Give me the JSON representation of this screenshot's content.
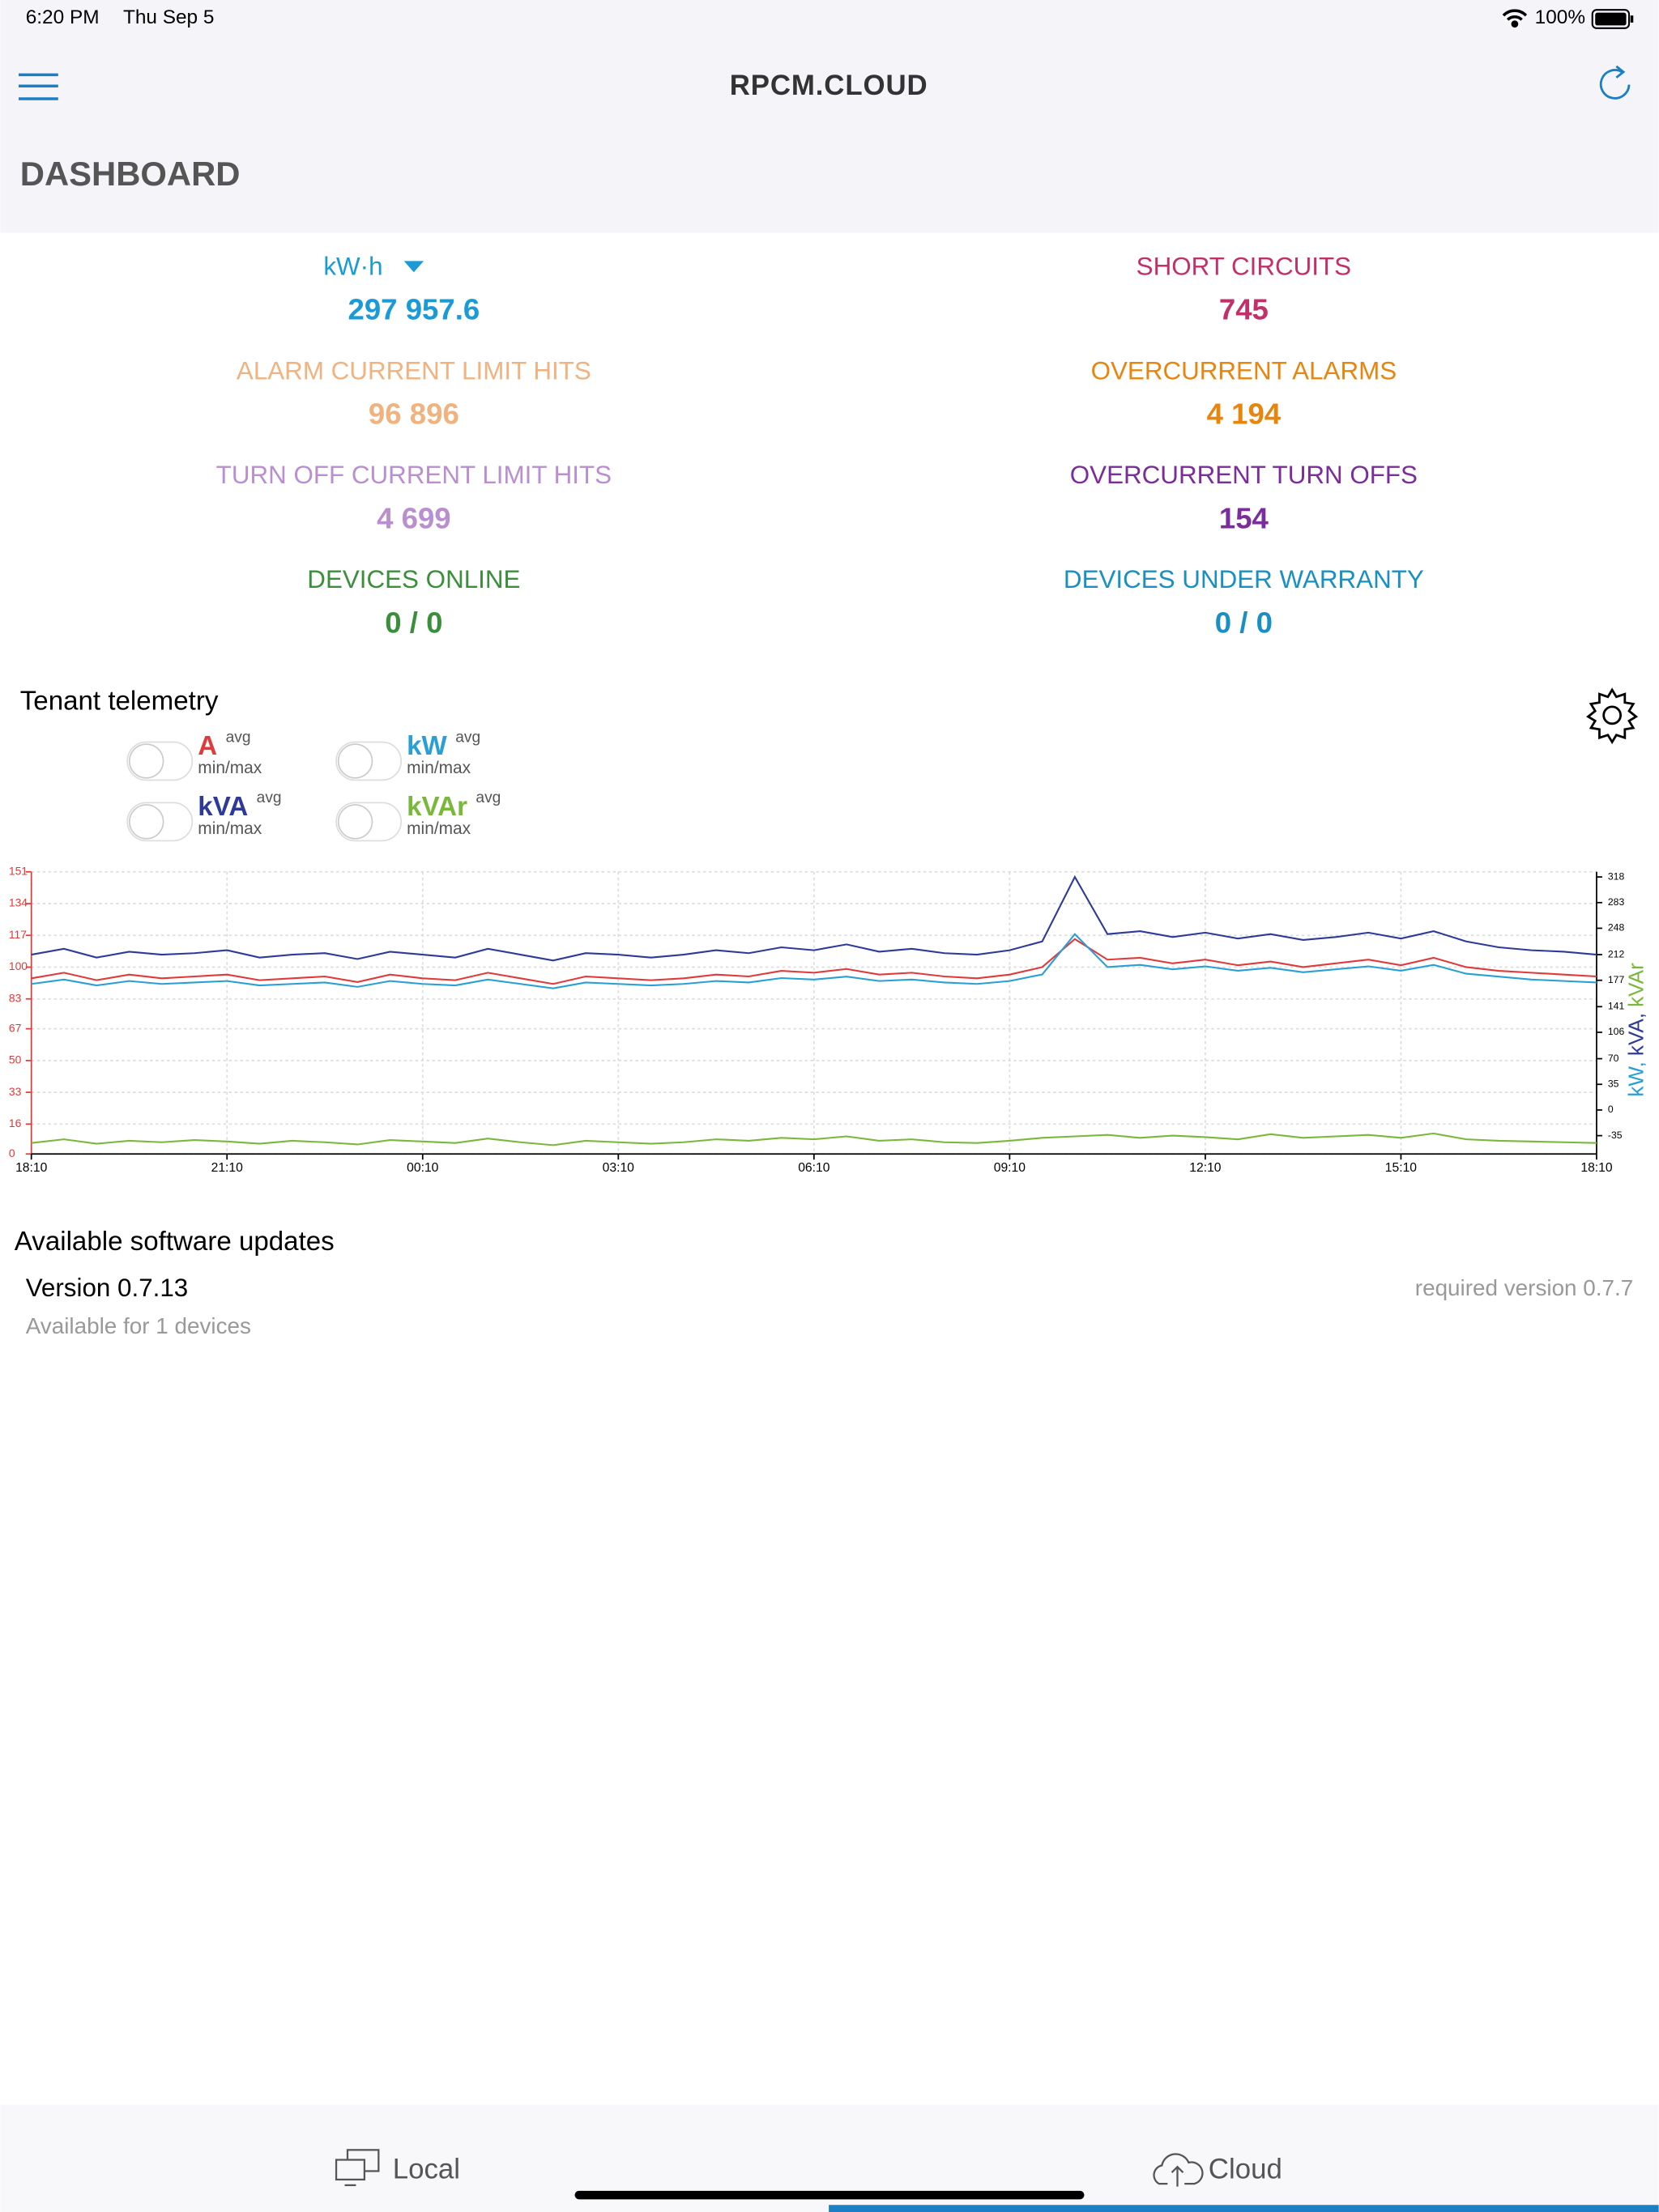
{
  "status_bar": {
    "time": "6:20 PM",
    "date": "Thu Sep 5",
    "battery": "100%"
  },
  "header": {
    "title": "RPCM.CLOUD",
    "page_title": "DASHBOARD"
  },
  "stats": [
    {
      "label": "kW·h",
      "value": "297 957.6",
      "color": "#1a9ad6"
    },
    {
      "label": "SHORT CIRCUITS",
      "value": "745",
      "color": "#c2306a"
    },
    {
      "label": "ALARM CURRENT LIMIT HITS",
      "value": "96 896",
      "color": "#f0b27e"
    },
    {
      "label": "OVERCURRENT ALARMS",
      "value": "4 194",
      "color": "#e8850f"
    },
    {
      "label": "TURN OFF CURRENT LIMIT HITS",
      "value": "4 699",
      "color": "#b98fcf"
    },
    {
      "label": "OVERCURRENT TURN OFFS",
      "value": "154",
      "color": "#7b2d9a"
    },
    {
      "label": "DEVICES ONLINE",
      "value": "0 / 0",
      "color": "#3a8f3a"
    },
    {
      "label": "DEVICES UNDER WARRANTY",
      "value": "0 / 0",
      "color": "#1a8fc4"
    }
  ],
  "telemetry": {
    "title": "Tenant telemetry",
    "avg": "avg",
    "minmax": "min/max"
  },
  "chart_data": {
    "type": "line",
    "x": [
      0,
      0.5,
      1,
      1.5,
      2,
      2.5,
      3,
      3.5,
      4,
      4.5,
      5,
      5.5,
      6,
      6.5,
      7,
      7.5,
      8,
      8.5,
      9,
      9.5,
      10,
      10.5,
      11,
      11.5,
      12,
      12.5,
      13,
      13.5,
      14,
      14.5,
      15,
      15.5,
      16,
      16.5,
      17,
      17.5,
      18,
      18.5,
      19,
      19.5,
      20,
      20.5,
      21,
      21.5,
      22,
      22.5,
      23,
      23.5,
      24
    ],
    "xlim": [
      0,
      24
    ],
    "xticks": [
      {
        "value": 0,
        "label": "18:10"
      },
      {
        "value": 3,
        "label": "21:10"
      },
      {
        "value": 6,
        "label": "00:10"
      },
      {
        "value": 9,
        "label": "03:10"
      },
      {
        "value": 12,
        "label": "06:10"
      },
      {
        "value": 15,
        "label": "09:10"
      },
      {
        "value": 18,
        "label": "12:10"
      },
      {
        "value": 21,
        "label": "15:10"
      },
      {
        "value": 24,
        "label": "18:10"
      }
    ],
    "ylim": [
      0,
      151
    ],
    "yticks": [
      0,
      16,
      33,
      50,
      67,
      83,
      100,
      117,
      134,
      151
    ],
    "y2lim": [
      -60,
      325
    ],
    "y2ticks": [
      -35,
      0,
      35,
      70,
      106,
      141,
      177,
      212,
      248,
      283,
      318
    ],
    "y2label": [
      "kW,",
      "kVA,",
      "kVAr"
    ],
    "grid": true,
    "series": [
      {
        "name": "A",
        "color": "#e03a3a",
        "axis": "y",
        "values": [
          94,
          97,
          93,
          96,
          94,
          95,
          96,
          93,
          94,
          95,
          92,
          96,
          94,
          93,
          97,
          94,
          91,
          95,
          94,
          93,
          94,
          96,
          95,
          98,
          97,
          99,
          96,
          97,
          95,
          94,
          96,
          100,
          115,
          104,
          105,
          102,
          104,
          101,
          103,
          100,
          102,
          104,
          101,
          105,
          100,
          98,
          97,
          96,
          95
        ]
      },
      {
        "name": "kW",
        "color": "#2a9fd6",
        "axis": "y2",
        "values": [
          172,
          178,
          170,
          176,
          172,
          174,
          176,
          170,
          172,
          174,
          168,
          176,
          172,
          170,
          178,
          172,
          166,
          174,
          172,
          170,
          172,
          176,
          174,
          180,
          178,
          182,
          176,
          178,
          174,
          172,
          176,
          185,
          240,
          195,
          198,
          192,
          196,
          190,
          194,
          188,
          192,
          196,
          190,
          198,
          186,
          182,
          178,
          176,
          174
        ]
      },
      {
        "name": "kVA",
        "color": "#2e3a9a",
        "axis": "y2",
        "values": [
          212,
          220,
          208,
          216,
          212,
          214,
          218,
          208,
          212,
          214,
          206,
          216,
          212,
          208,
          220,
          212,
          204,
          214,
          212,
          208,
          212,
          218,
          214,
          222,
          218,
          226,
          216,
          220,
          214,
          212,
          218,
          230,
          318,
          240,
          244,
          236,
          242,
          234,
          240,
          232,
          236,
          242,
          234,
          244,
          230,
          222,
          218,
          216,
          212
        ]
      },
      {
        "name": "kVAr",
        "color": "#7ab83c",
        "axis": "y2",
        "values": [
          -45,
          -40,
          -46,
          -42,
          -44,
          -41,
          -43,
          -46,
          -42,
          -44,
          -47,
          -41,
          -43,
          -45,
          -39,
          -44,
          -48,
          -42,
          -44,
          -46,
          -44,
          -40,
          -42,
          -38,
          -40,
          -36,
          -42,
          -40,
          -44,
          -45,
          -42,
          -38,
          -36,
          -34,
          -38,
          -35,
          -37,
          -40,
          -33,
          -38,
          -36,
          -34,
          -38,
          -32,
          -40,
          -42,
          -43,
          -44,
          -45
        ]
      }
    ]
  },
  "updates": {
    "title": "Available software updates",
    "version": "Version 0.7.13",
    "subtitle": "Available for 1 devices",
    "required": "required version 0.7.7"
  },
  "tabs": [
    "Local",
    "Cloud"
  ]
}
